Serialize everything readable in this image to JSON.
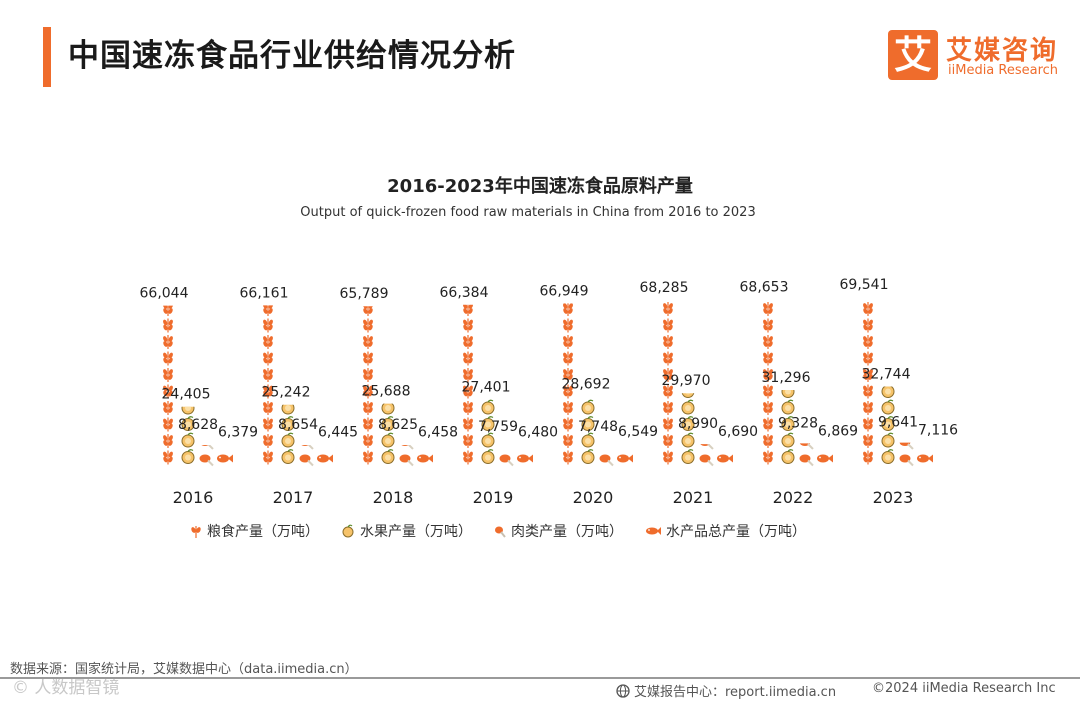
{
  "header": {
    "title": "中国速冻食品行业供给情况分析",
    "brand_logo": "艾",
    "brand_cn": "艾媒咨询",
    "brand_en": "iiMedia Research",
    "accent_color": "#ef6c2c"
  },
  "chart_data": {
    "type": "bar",
    "title": "2016-2023年中国速冻食品原料产量",
    "subtitle": "Output of quick-frozen food raw materials in China from 2016 to 2023",
    "categories": [
      "2016",
      "2017",
      "2018",
      "2019",
      "2020",
      "2021",
      "2022",
      "2023"
    ],
    "series": [
      {
        "name": "粮食产量（万吨）",
        "icon": "wheat-icon",
        "values": [
          66044,
          66161,
          65789,
          66384,
          66949,
          68285,
          68653,
          69541
        ],
        "labels": [
          "66,044",
          "66,161",
          "65,789",
          "66,384",
          "66,949",
          "68,285",
          "68,653",
          "69,541"
        ]
      },
      {
        "name": "水果产量（万吨）",
        "icon": "fruit-icon",
        "values": [
          24405,
          25242,
          25688,
          27401,
          28692,
          29970,
          31296,
          32744
        ],
        "labels": [
          "24,405",
          "25,242",
          "25,688",
          "27,401",
          "28,692",
          "29,970",
          "31,296",
          "32,744"
        ]
      },
      {
        "name": "肉类产量（万吨）",
        "icon": "meat-icon",
        "values": [
          8628,
          8654,
          8625,
          7759,
          7748,
          8990,
          9328,
          9641
        ],
        "labels": [
          "8,628",
          "8,654",
          "8,625",
          "7,759",
          "7,748",
          "8,990",
          "9,328",
          "9,641"
        ]
      },
      {
        "name": "水产品总产量（万吨）",
        "icon": "fish-icon",
        "values": [
          6379,
          6445,
          6458,
          6480,
          6549,
          6690,
          6869,
          7116
        ],
        "labels": [
          "6,379",
          "6,445",
          "6,458",
          "6,480",
          "6,549",
          "6,690",
          "6,869",
          "7,116"
        ]
      }
    ],
    "legend": "bottom",
    "grid": false
  },
  "footer": {
    "source": "数据来源：国家统计局，艾媒数据中心（data.iimedia.cn）",
    "watermark": "© 人数据智镜",
    "report_site": "艾媒报告中心：report.iimedia.cn",
    "copyright": "©2024  iiMedia Research  Inc"
  }
}
